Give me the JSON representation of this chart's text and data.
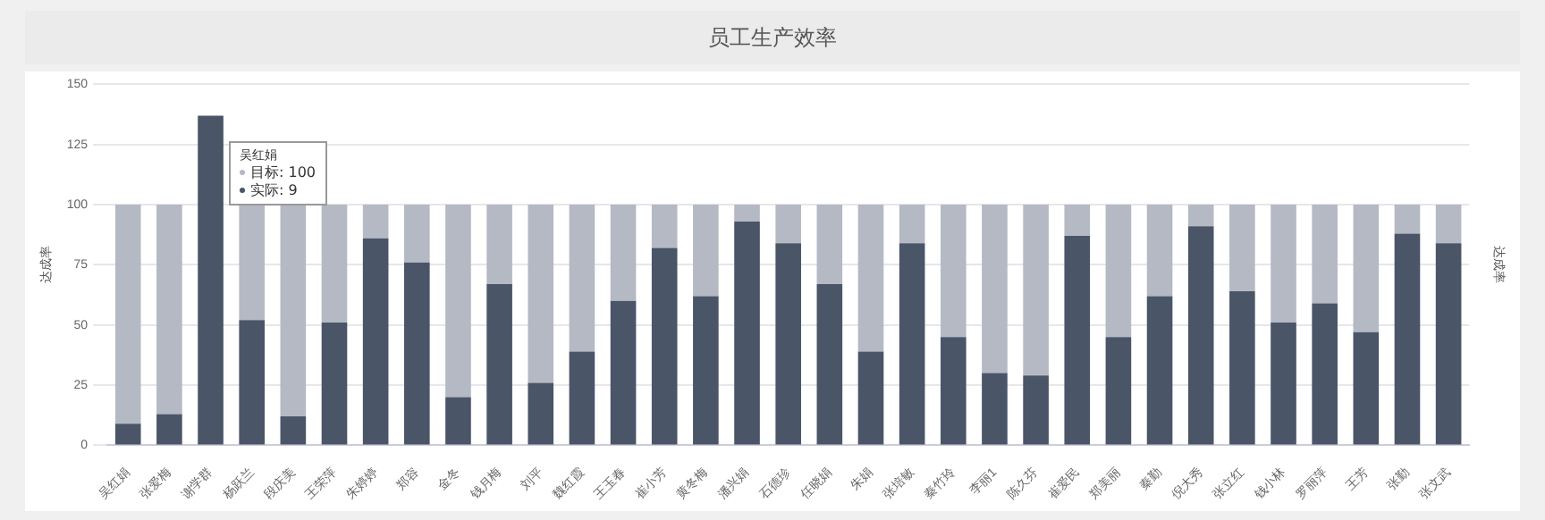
{
  "chart_data": {
    "type": "bar",
    "title": "员工生产效率",
    "ylabel": "达成率",
    "y2label": "达成率",
    "categories": [
      "吴红娟",
      "张爱梅",
      "谢学群",
      "杨跃兰",
      "段庆美",
      "王荣萍",
      "朱婷婷",
      "郑容",
      "金冬",
      "钱月梅",
      "刘平",
      "魏红霞",
      "王玉春",
      "崔小芳",
      "黄冬梅",
      "潘兴娟",
      "石德珍",
      "任晓娟",
      "朱娟",
      "张培敏",
      "秦竹玲",
      "李丽1",
      "陈久芬",
      "崔爱民",
      "郑美丽",
      "秦勤",
      "倪大秀",
      "张立红",
      "钱小林",
      "罗丽萍",
      "王芳",
      "张勤",
      "张文武"
    ],
    "stacked": true,
    "series": [
      {
        "color": "#4a5568",
        "values": [
          9,
          13,
          137,
          52,
          12,
          51,
          86,
          76,
          20,
          67,
          26,
          39,
          60,
          82,
          62,
          93,
          84,
          67,
          39,
          84,
          45,
          30,
          29,
          87,
          45,
          62,
          91,
          64,
          51,
          59,
          47,
          88,
          84
        ]
      },
      {
        "color": "#b5b9c4",
        "values": [
          91,
          87,
          0,
          48,
          88,
          49,
          14,
          24,
          80,
          33,
          74,
          61,
          40,
          18,
          38,
          7,
          16,
          33,
          61,
          16,
          55,
          70,
          71,
          13,
          55,
          38,
          9,
          36,
          49,
          41,
          53,
          12,
          16
        ]
      }
    ],
    "ylim": [
      0,
      150
    ],
    "yticks": [
      0,
      25,
      50,
      75,
      100,
      125,
      150
    ],
    "grid": "y",
    "legend": false,
    "annotations": [
      "吴红娟",
      "目标: 100",
      "实际: 9"
    ]
  }
}
